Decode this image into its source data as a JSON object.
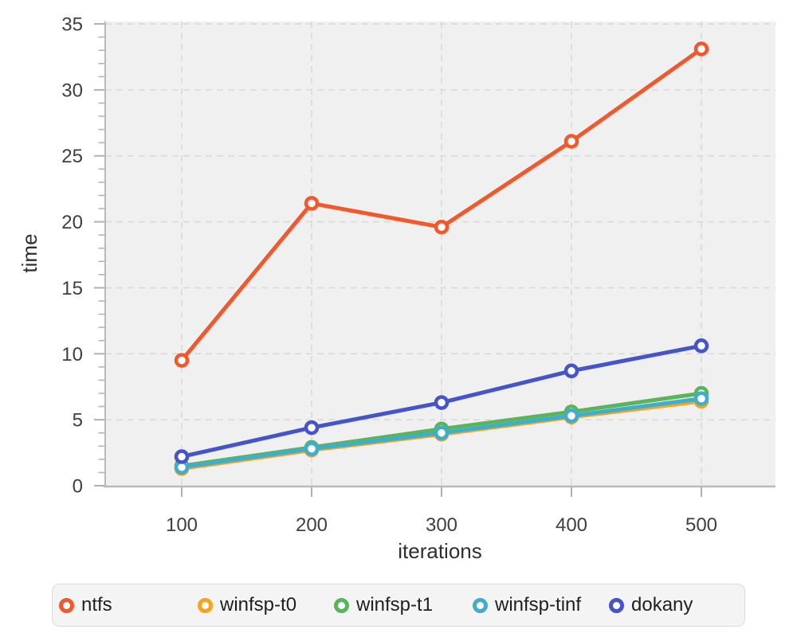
{
  "colors": {
    "page_background": "#ffffff",
    "plot_background": "#f0f0f1",
    "grid": "#d9d9d9",
    "axis_line": "#b9b9b9",
    "tick_mark": "#b0b0b0",
    "tick_label": "#3f3f3f",
    "axis_title": "#2e2e2e",
    "marker_fill": "#ffffff",
    "legend_background": "#f4f4f4",
    "legend_border": "#dadada",
    "legend_text": "#1f1f1f"
  },
  "chart_data": {
    "type": "line",
    "title": "",
    "xlabel": "iterations",
    "ylabel": "time",
    "x": [
      100,
      200,
      300,
      400,
      500
    ],
    "x_ticks": [
      "100",
      "200",
      "300",
      "400",
      "500"
    ],
    "y_ticks": [
      0,
      5,
      10,
      15,
      20,
      25,
      30,
      35
    ],
    "ylim": [
      0,
      35.2
    ],
    "grid": "dashed",
    "legend_position": "bottom",
    "series": [
      {
        "name": "ntfs",
        "color": "#F1592C",
        "values": [
          9.5,
          21.4,
          19.6,
          26.1,
          33.1
        ]
      },
      {
        "name": "winfsp-t0",
        "color": "#F9A21B",
        "values": [
          1.3,
          2.7,
          3.9,
          5.2,
          6.4
        ]
      },
      {
        "name": "winfsp-t1",
        "color": "#58B55C",
        "values": [
          1.5,
          2.9,
          4.3,
          5.6,
          7.0
        ]
      },
      {
        "name": "winfsp-tinf",
        "color": "#3EAECC",
        "values": [
          1.4,
          2.8,
          4.0,
          5.3,
          6.6
        ]
      },
      {
        "name": "dokany",
        "color": "#4554C8",
        "values": [
          2.2,
          4.4,
          6.3,
          8.7,
          10.6
        ]
      }
    ]
  }
}
